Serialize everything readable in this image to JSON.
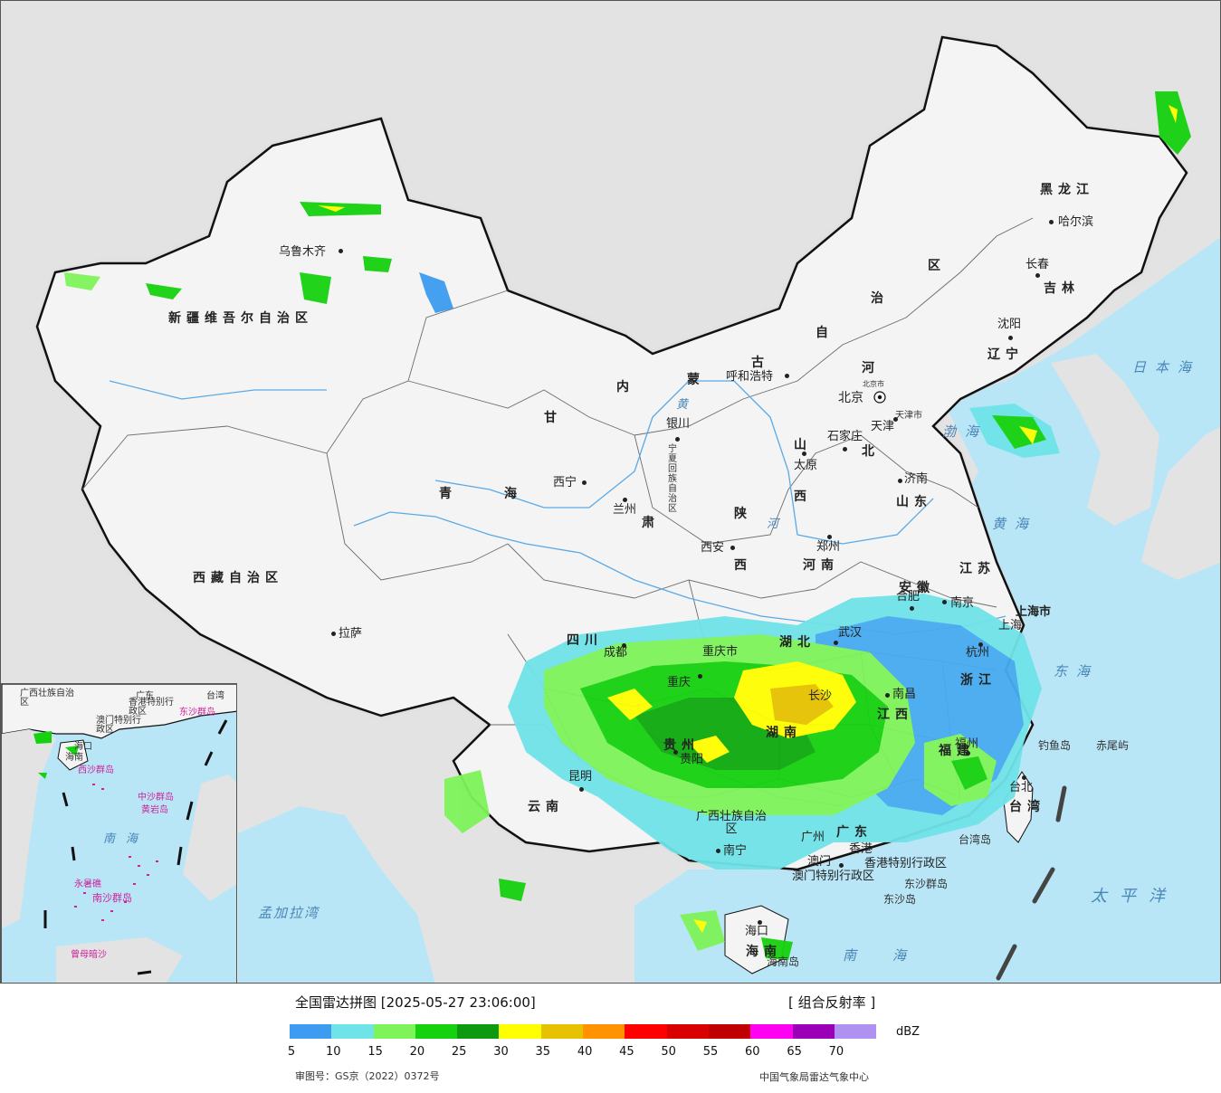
{
  "map": {
    "colors": {
      "sea": "#b9e6f7",
      "land_china": "#f4f4f4",
      "land_other": "#e3e3e3",
      "border": "#111111",
      "river": "#5aa9e6"
    },
    "provinces": [
      {
        "id": "xinjiang",
        "name": "新疆维吾尔自治区"
      },
      {
        "id": "xizang",
        "name": "西藏自治区"
      },
      {
        "id": "qinghai-1",
        "name": "青"
      },
      {
        "id": "qinghai-2",
        "name": "海"
      },
      {
        "id": "gansu-1",
        "name": "甘"
      },
      {
        "id": "gansu-2",
        "name": "肃"
      },
      {
        "id": "neimenggu-1",
        "name": "内"
      },
      {
        "id": "neimenggu-2",
        "name": "蒙"
      },
      {
        "id": "neimenggu-3",
        "name": "古"
      },
      {
        "id": "neimenggu-4",
        "name": "自"
      },
      {
        "id": "neimenggu-5",
        "name": "治"
      },
      {
        "id": "neimenggu-6",
        "name": "区"
      },
      {
        "id": "heilongjiang",
        "name": "黑龙江"
      },
      {
        "id": "jilin",
        "name": "吉林"
      },
      {
        "id": "liaoning",
        "name": "辽宁"
      },
      {
        "id": "hebei-1",
        "name": "河"
      },
      {
        "id": "hebei-2",
        "name": "北"
      },
      {
        "id": "shanxi-1",
        "name": "山"
      },
      {
        "id": "shanxi-2",
        "name": "西"
      },
      {
        "id": "shandong",
        "name": "山东"
      },
      {
        "id": "henan",
        "name": "河南"
      },
      {
        "id": "shaanxi-1",
        "name": "陕"
      },
      {
        "id": "shaanxi-2",
        "name": "西"
      },
      {
        "id": "ningxia",
        "name": "宁夏回族自治区"
      },
      {
        "id": "sichuan",
        "name": "四川"
      },
      {
        "id": "chongqing",
        "name": "重庆市"
      },
      {
        "id": "hubei",
        "name": "湖北"
      },
      {
        "id": "hunan",
        "name": "湖南"
      },
      {
        "id": "jiangxi",
        "name": "江西"
      },
      {
        "id": "anhui",
        "name": "安徽"
      },
      {
        "id": "jiangsu",
        "name": "江苏"
      },
      {
        "id": "zhejiang",
        "name": "浙江"
      },
      {
        "id": "fujian",
        "name": "福建"
      },
      {
        "id": "guangdong",
        "name": "广东"
      },
      {
        "id": "guangxi",
        "name": "广西壮族自治区"
      },
      {
        "id": "guizhou",
        "name": "贵州"
      },
      {
        "id": "yunnan",
        "name": "云南"
      },
      {
        "id": "hainan",
        "name": "海南"
      },
      {
        "id": "taiwan",
        "name": "台湾"
      },
      {
        "id": "tianjin",
        "name": "天津市"
      },
      {
        "id": "shanghai",
        "name": "上海市"
      },
      {
        "id": "hongkong",
        "name": "香港特别行政区"
      },
      {
        "id": "macao",
        "name": "澳门特别行政区"
      }
    ],
    "cities": [
      {
        "id": "urumqi",
        "name": "乌鲁木齐"
      },
      {
        "id": "lhasa",
        "name": "拉萨"
      },
      {
        "id": "xining",
        "name": "西宁"
      },
      {
        "id": "lanzhou",
        "name": "兰州"
      },
      {
        "id": "yinchuan",
        "name": "银川"
      },
      {
        "id": "hohhot",
        "name": "呼和浩特"
      },
      {
        "id": "beijing",
        "name": "北京"
      },
      {
        "id": "beijingshi",
        "name": "北京市"
      },
      {
        "id": "tianjin",
        "name": "天津"
      },
      {
        "id": "shijiazhuang",
        "name": "石家庄"
      },
      {
        "id": "taiyuan",
        "name": "太原"
      },
      {
        "id": "jinan",
        "name": "济南"
      },
      {
        "id": "zhengzhou",
        "name": "郑州"
      },
      {
        "id": "xian",
        "name": "西安"
      },
      {
        "id": "harbin",
        "name": "哈尔滨"
      },
      {
        "id": "changchun",
        "name": "长春"
      },
      {
        "id": "shenyang",
        "name": "沈阳"
      },
      {
        "id": "nanjing",
        "name": "南京"
      },
      {
        "id": "hefei",
        "name": "合肥"
      },
      {
        "id": "shanghai",
        "name": "上海"
      },
      {
        "id": "hangzhou",
        "name": "杭州"
      },
      {
        "id": "wuhan",
        "name": "武汉"
      },
      {
        "id": "chengdu",
        "name": "成都"
      },
      {
        "id": "chongqing",
        "name": "重庆"
      },
      {
        "id": "changsha",
        "name": "长沙"
      },
      {
        "id": "nanchang",
        "name": "南昌"
      },
      {
        "id": "fuzhou",
        "name": "福州"
      },
      {
        "id": "guiyang",
        "name": "贵阳"
      },
      {
        "id": "kunming",
        "name": "昆明"
      },
      {
        "id": "nanning",
        "name": "南宁"
      },
      {
        "id": "guangzhou",
        "name": "广州"
      },
      {
        "id": "hongkong",
        "name": "香港"
      },
      {
        "id": "macao",
        "name": "澳门"
      },
      {
        "id": "haikou",
        "name": "海口"
      },
      {
        "id": "taibei",
        "name": "台北"
      }
    ],
    "islands": [
      {
        "id": "diaoyu",
        "name": "钓鱼岛"
      },
      {
        "id": "chiwei",
        "name": "赤尾屿"
      },
      {
        "id": "taiwan-island",
        "name": "台湾岛"
      },
      {
        "id": "dongsha-qundao",
        "name": "东沙群岛"
      },
      {
        "id": "dongsha-dao",
        "name": "东沙岛"
      },
      {
        "id": "hainan-dao",
        "name": "海南岛"
      }
    ],
    "seas": [
      {
        "id": "sea-japan",
        "name": "日本海"
      },
      {
        "id": "sea-bohai",
        "name": "渤海"
      },
      {
        "id": "sea-yellow",
        "name": "黄海"
      },
      {
        "id": "sea-east",
        "name": "东海"
      },
      {
        "id": "sea-pacific",
        "name": "太平洋"
      },
      {
        "id": "sea-south",
        "name": "南海"
      },
      {
        "id": "sea-bengal",
        "name": "孟加拉湾"
      }
    ],
    "rivers": [
      {
        "id": "huanghe-1",
        "name": "黄"
      },
      {
        "id": "huanghe-2",
        "name": "河"
      }
    ]
  },
  "inset": {
    "labels": [
      {
        "id": "guangxi",
        "name": "广西壮族自治区"
      },
      {
        "id": "guangdong",
        "name": "广东"
      },
      {
        "id": "taiwan",
        "name": "台湾"
      },
      {
        "id": "hongkong",
        "name": "香港特别行政区"
      },
      {
        "id": "macao",
        "name": "澳门特别行政区"
      },
      {
        "id": "dongsha",
        "name": "东沙群岛"
      },
      {
        "id": "haikou",
        "name": "海口"
      },
      {
        "id": "hainan",
        "name": "海南"
      },
      {
        "id": "xisha",
        "name": "西沙群岛"
      },
      {
        "id": "zhongsha",
        "name": "中沙群岛"
      },
      {
        "id": "huangyan",
        "name": "黄岩岛"
      },
      {
        "id": "nanhai",
        "name": "南海"
      },
      {
        "id": "nansha",
        "name": "南沙群岛"
      },
      {
        "id": "yongshu",
        "name": "永暑礁"
      },
      {
        "id": "zengmu",
        "name": "曾母暗沙"
      }
    ]
  },
  "legend": {
    "title": "全国雷达拼图 [2025-05-27 23:06:00]",
    "product": "[ 组合反射率 ]",
    "unit": "dBZ",
    "colors": [
      "#3d9cf0",
      "#6fe3e8",
      "#7ef35a",
      "#16d10f",
      "#0d9a10",
      "#ffff00",
      "#e6c200",
      "#ff9300",
      "#ff0000",
      "#d90000",
      "#c00000",
      "#ff00f0",
      "#9a00b6",
      "#ae91f0"
    ],
    "ticks": [
      "5",
      "10",
      "15",
      "20",
      "25",
      "30",
      "35",
      "40",
      "45",
      "50",
      "55",
      "60",
      "65",
      "70"
    ],
    "approval": "审图号：GS京（2022）0372号",
    "credit": "中国气象局雷达气象中心"
  }
}
